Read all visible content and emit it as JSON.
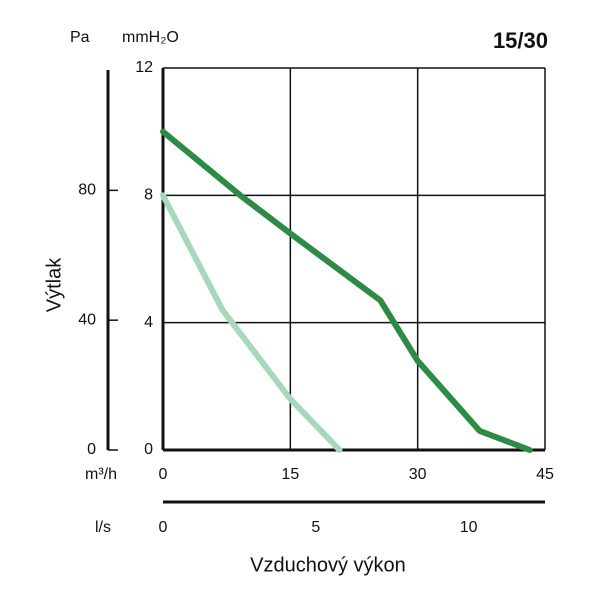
{
  "chart_data": {
    "type": "line",
    "title": "15/30",
    "xlabel": "Vzduchový výkon",
    "ylabel": "Výtlak",
    "x_unit": "m³/h",
    "y_unit": "mmH₂O",
    "x2_unit": "l/s",
    "y2_unit": "Pa",
    "xlim": [
      0,
      45
    ],
    "xticks": [
      0,
      15,
      30,
      45
    ],
    "ylim": [
      0,
      12
    ],
    "yticks": [
      0,
      4,
      8,
      12
    ],
    "x2lim": [
      0,
      12.5
    ],
    "x2ticks": [
      0,
      5,
      10
    ],
    "y2lim": [
      0,
      117.7
    ],
    "y2ticks": [
      0,
      40,
      80
    ],
    "grid": true,
    "series": [
      {
        "color": "#2e8b45",
        "x": [
          0,
          9.1,
          15,
          25.6,
          30,
          37.3,
          43.2
        ],
        "values": [
          10.0,
          8.0,
          6.8,
          4.7,
          2.8,
          0.6,
          0
        ]
      },
      {
        "color": "#a8d8bc",
        "x": [
          0,
          7,
          15,
          20.8
        ],
        "values": [
          8.0,
          4.4,
          1.6,
          0
        ]
      }
    ]
  }
}
